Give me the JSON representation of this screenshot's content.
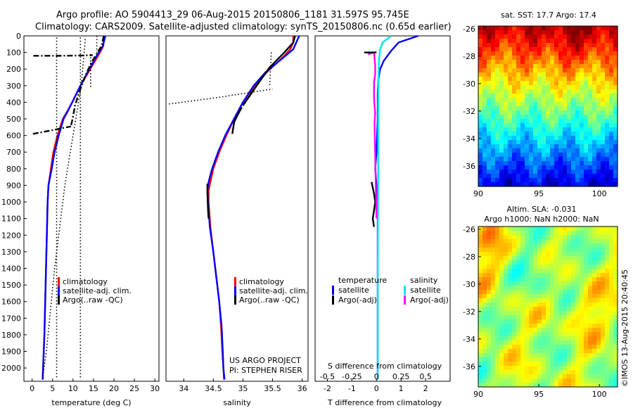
{
  "header": {
    "line1": "Argo profile: AO 5904413_29 06-Aug-2015 20150806_1181 31.597S 95.745E",
    "line2": "Climatology: CARS2009. Satellite-adjusted climatology: synTS_20150806.nc (0.65d earlier)"
  },
  "project": {
    "line1": "US ARGO PROJECT",
    "line2": "PI: STEPHEN RISER"
  },
  "credit": "©IMOS 13-Aug-2015 20:40:45",
  "colors": {
    "climatology": "#ff0000",
    "satellite": "#0000ff",
    "argo": "#000000",
    "sal_satellite": "#00e5ee",
    "sal_argo": "#ff00ff"
  },
  "maps": {
    "sst": {
      "title": "sat. SST: 17.7  Argo: 17.4",
      "colorscale": "jet",
      "xticks": [
        "90",
        "95",
        "100"
      ],
      "yticks": [
        "-26",
        "-28",
        "-30",
        "-32",
        "-34",
        "-36"
      ],
      "lon_range": [
        90,
        101.5
      ],
      "lat_range": [
        -37.5,
        -25.8
      ]
    },
    "sla": {
      "title1": "Altim. SLA: -0.031",
      "title2": "Argo h1000: NaN h2000: NaN",
      "colorscale": "jet",
      "xticks": [
        "90",
        "95",
        "100"
      ],
      "yticks": [
        "-26",
        "-28",
        "-30",
        "-32",
        "-34",
        "-36"
      ],
      "lon_range": [
        90,
        101.5
      ],
      "lat_range": [
        -37.5,
        -25.8
      ]
    }
  },
  "chart_data": [
    {
      "type": "line",
      "id": "temperature",
      "xlabel": "temperature (deg C)",
      "ylabel": "",
      "xlim": [
        -2,
        31
      ],
      "ylim": [
        2080,
        0
      ],
      "xticks": [
        "0",
        "5",
        "10",
        "15",
        "20",
        "25",
        "30"
      ],
      "yticks": [
        "0",
        "100",
        "200",
        "300",
        "400",
        "500",
        "600",
        "700",
        "800",
        "900",
        "1000",
        "1100",
        "1200",
        "1300",
        "1400",
        "1500",
        "1600",
        "1700",
        "1800",
        "1900",
        "2000"
      ],
      "legend": [
        "climatology",
        "satellite-adj. clim.",
        "Argo(..raw -QC)"
      ],
      "series": [
        {
          "name": "climatology",
          "color": "#ff0000",
          "x": [
            17.6,
            17.4,
            16.6,
            15.4,
            14.2,
            13.0,
            11.8,
            10.8,
            9.8,
            8.7,
            7.5,
            6.2,
            5.2,
            4.6,
            4.3,
            4.0,
            3.8,
            3.6,
            3.4,
            3.2,
            3.0,
            2.85,
            2.7,
            2.6,
            2.6
          ],
          "y": [
            0,
            60,
            100,
            150,
            200,
            250,
            300,
            350,
            400,
            450,
            500,
            600,
            700,
            800,
            850,
            900,
            1000,
            1200,
            1400,
            1600,
            1800,
            1900,
            2000,
            2050,
            2070
          ]
        },
        {
          "name": "satellite-adj. clim.",
          "color": "#0000ff",
          "x": [
            17.9,
            17.3,
            16.3,
            15.1,
            14.0,
            12.9,
            11.8,
            10.8,
            9.8,
            8.8,
            7.7,
            6.5,
            5.5,
            4.8,
            4.4,
            4.0,
            3.8,
            3.6,
            3.4,
            3.2,
            3.0,
            2.85,
            2.7,
            2.6,
            2.6
          ],
          "y": [
            0,
            60,
            100,
            150,
            200,
            250,
            300,
            350,
            400,
            450,
            500,
            600,
            700,
            800,
            850,
            900,
            1000,
            1200,
            1400,
            1600,
            1800,
            1900,
            2000,
            2050,
            2070
          ]
        },
        {
          "name": "Argo",
          "color": "#000000",
          "style": "dashdot",
          "x": [
            17.5,
            17.0,
            16.0,
            14.5,
            13.0,
            11.5,
            10.5,
            9.8,
            9.4
          ],
          "y": [
            0,
            60,
            100,
            160,
            240,
            340,
            420,
            510,
            550
          ]
        },
        {
          "name": "Argo spike 120",
          "color": "#000000",
          "style": "dashdot",
          "x": [
            0.3,
            6.5,
            12.0,
            14.8
          ],
          "y": [
            120,
            120,
            118,
            116
          ]
        },
        {
          "name": "Argo spike 590",
          "color": "#000000",
          "style": "dashdot",
          "x": [
            0.2,
            4.5,
            9.5
          ],
          "y": [
            590,
            570,
            545
          ]
        },
        {
          "name": "Argo raw QC1",
          "color": "#000000",
          "style": "dotted",
          "x": [
            6.0,
            6.0,
            6.0,
            6.0
          ],
          "y": [
            10,
            600,
            1400,
            2070
          ]
        },
        {
          "name": "Argo raw QC2",
          "color": "#000000",
          "style": "dotted",
          "x": [
            11.8,
            11.8,
            11.8,
            11.8
          ],
          "y": [
            10,
            500,
            1400,
            2070
          ]
        },
        {
          "name": "Argo raw QC3",
          "color": "#000000",
          "style": "dotted",
          "x": [
            13.0,
            12.0,
            8.0,
            5.5,
            3.5,
            2.5
          ],
          "y": [
            20,
            300,
            900,
            1400,
            1900,
            2070
          ]
        },
        {
          "name": "Argo raw QC4",
          "color": "#000000",
          "style": "dotted",
          "x": [
            14.3,
            14.3
          ],
          "y": [
            110,
            310
          ]
        },
        {
          "name": "Argo raw QC5",
          "color": "#000000",
          "style": "dotted",
          "x": [
            15.8,
            15.8
          ],
          "y": [
            0,
            100
          ]
        }
      ]
    },
    {
      "type": "line",
      "id": "salinity",
      "xlabel": "salinity",
      "ylabel": "",
      "xlim": [
        33.7,
        36.1
      ],
      "ylim": [
        2080,
        0
      ],
      "xticks": [
        "34",
        "34.5",
        "35",
        "35.5",
        "36"
      ],
      "yticks": [],
      "legend": [
        "climatology",
        "satellite-adj. clim.",
        "Argo(..raw -QC)"
      ],
      "series": [
        {
          "name": "climatology",
          "color": "#ff0000",
          "x": [
            35.85,
            35.85,
            35.8,
            35.7,
            35.55,
            35.4,
            35.2,
            35.0,
            34.85,
            34.72,
            34.6,
            34.5,
            34.45,
            34.42,
            34.42,
            34.45,
            34.5,
            34.55,
            34.6,
            34.63,
            34.65,
            34.67,
            34.68
          ],
          "y": [
            0,
            40,
            80,
            120,
            170,
            220,
            300,
            400,
            500,
            600,
            700,
            800,
            880,
            930,
            1000,
            1150,
            1300,
            1450,
            1600,
            1750,
            1900,
            2000,
            2070
          ]
        },
        {
          "name": "satellite-adj. clim.",
          "color": "#0000ff",
          "x": [
            35.95,
            35.9,
            35.85,
            35.72,
            35.55,
            35.38,
            35.18,
            35.0,
            34.85,
            34.7,
            34.58,
            34.48,
            34.42,
            34.4,
            34.41,
            34.44,
            34.5,
            34.55,
            34.6,
            34.64,
            34.66,
            34.67,
            34.69
          ],
          "y": [
            0,
            40,
            80,
            120,
            170,
            220,
            300,
            400,
            500,
            600,
            700,
            800,
            880,
            930,
            1000,
            1150,
            1300,
            1450,
            1600,
            1750,
            1900,
            2000,
            2070
          ]
        },
        {
          "name": "Argo",
          "color": "#000000",
          "x": [
            35.88,
            35.85,
            35.7,
            35.45,
            35.25,
            35.0
          ],
          "y": [
            0,
            40,
            100,
            190,
            290,
            420
          ]
        },
        {
          "name": "Argo deep",
          "color": "#000000",
          "x": [
            34.98,
            34.92,
            34.85,
            34.82
          ],
          "y": [
            430,
            470,
            520,
            590
          ]
        },
        {
          "name": "Argo 900",
          "color": "#000000",
          "x": [
            34.4,
            34.4,
            34.41,
            34.42
          ],
          "y": [
            890,
            950,
            1050,
            1100
          ]
        },
        {
          "name": "Argo raw QC1",
          "color": "#000000",
          "style": "dotted",
          "x": [
            33.75,
            34.6,
            35.5
          ],
          "y": [
            410,
            370,
            320
          ]
        },
        {
          "name": "Argo raw QC2",
          "color": "#000000",
          "style": "dotted",
          "x": [
            35.48,
            35.45
          ],
          "y": [
            100,
            310
          ]
        }
      ]
    },
    {
      "type": "line",
      "id": "difference",
      "xlabel": "T difference from climatology",
      "xlabel_top": "S difference from climatology",
      "ylabel": "",
      "xlim": [
        -2.5,
        3.0
      ],
      "ylim": [
        2080,
        0
      ],
      "xticks": [
        "-2",
        "-1",
        "0",
        "1",
        "2"
      ],
      "xticks_top": [
        "-0.5",
        "-0.25",
        "0",
        "0.25",
        "0.5"
      ],
      "yticks": [],
      "legend_titles": [
        "temperature",
        "salinity"
      ],
      "legend": [
        "satellite",
        "Argo(-adj)",
        "satellite",
        "Argo(-adj)"
      ],
      "series": [
        {
          "name": "temperature satellite",
          "color": "#0000ff",
          "x": [
            1.7,
            0.9,
            0.6,
            0.3,
            0.15,
            0.08,
            0.05,
            0.05,
            0.0,
            -0.05,
            0.0,
            0.05,
            0.05,
            0.05,
            0.05,
            0.05,
            0.05
          ],
          "y": [
            0,
            40,
            90,
            150,
            200,
            260,
            350,
            500,
            700,
            800,
            900,
            1000,
            1200,
            1400,
            1600,
            1800,
            2070
          ]
        },
        {
          "name": "salinity satellite",
          "color": "#00e5ee",
          "x": [
            0.6,
            0.25,
            0.15,
            0.1,
            0.08,
            0.07,
            0.07,
            0.07,
            0.06,
            0.05,
            0.05
          ],
          "y": [
            0,
            40,
            80,
            150,
            250,
            400,
            600,
            800,
            1100,
            1500,
            2070
          ]
        },
        {
          "name": "temperature Argo",
          "color": "#000000",
          "x": [
            -0.2,
            -0.1,
            -0.05,
            -0.1,
            -0.15,
            -0.1
          ],
          "y": [
            880,
            950,
            1000,
            1050,
            1100,
            1150
          ]
        },
        {
          "name": "salinity Argo",
          "color": "#ff00ff",
          "x": [
            -0.35,
            -0.1,
            -0.05,
            -0.05,
            -0.1,
            -0.1,
            -0.05,
            -0.08,
            0.0
          ],
          "y": [
            110,
            100,
            180,
            230,
            280,
            380,
            470,
            520,
            1100
          ]
        },
        {
          "name": "T Argo upper",
          "color": "#000000",
          "x": [
            -0.5,
            0.0
          ],
          "y": [
            100,
            100
          ]
        }
      ]
    }
  ]
}
